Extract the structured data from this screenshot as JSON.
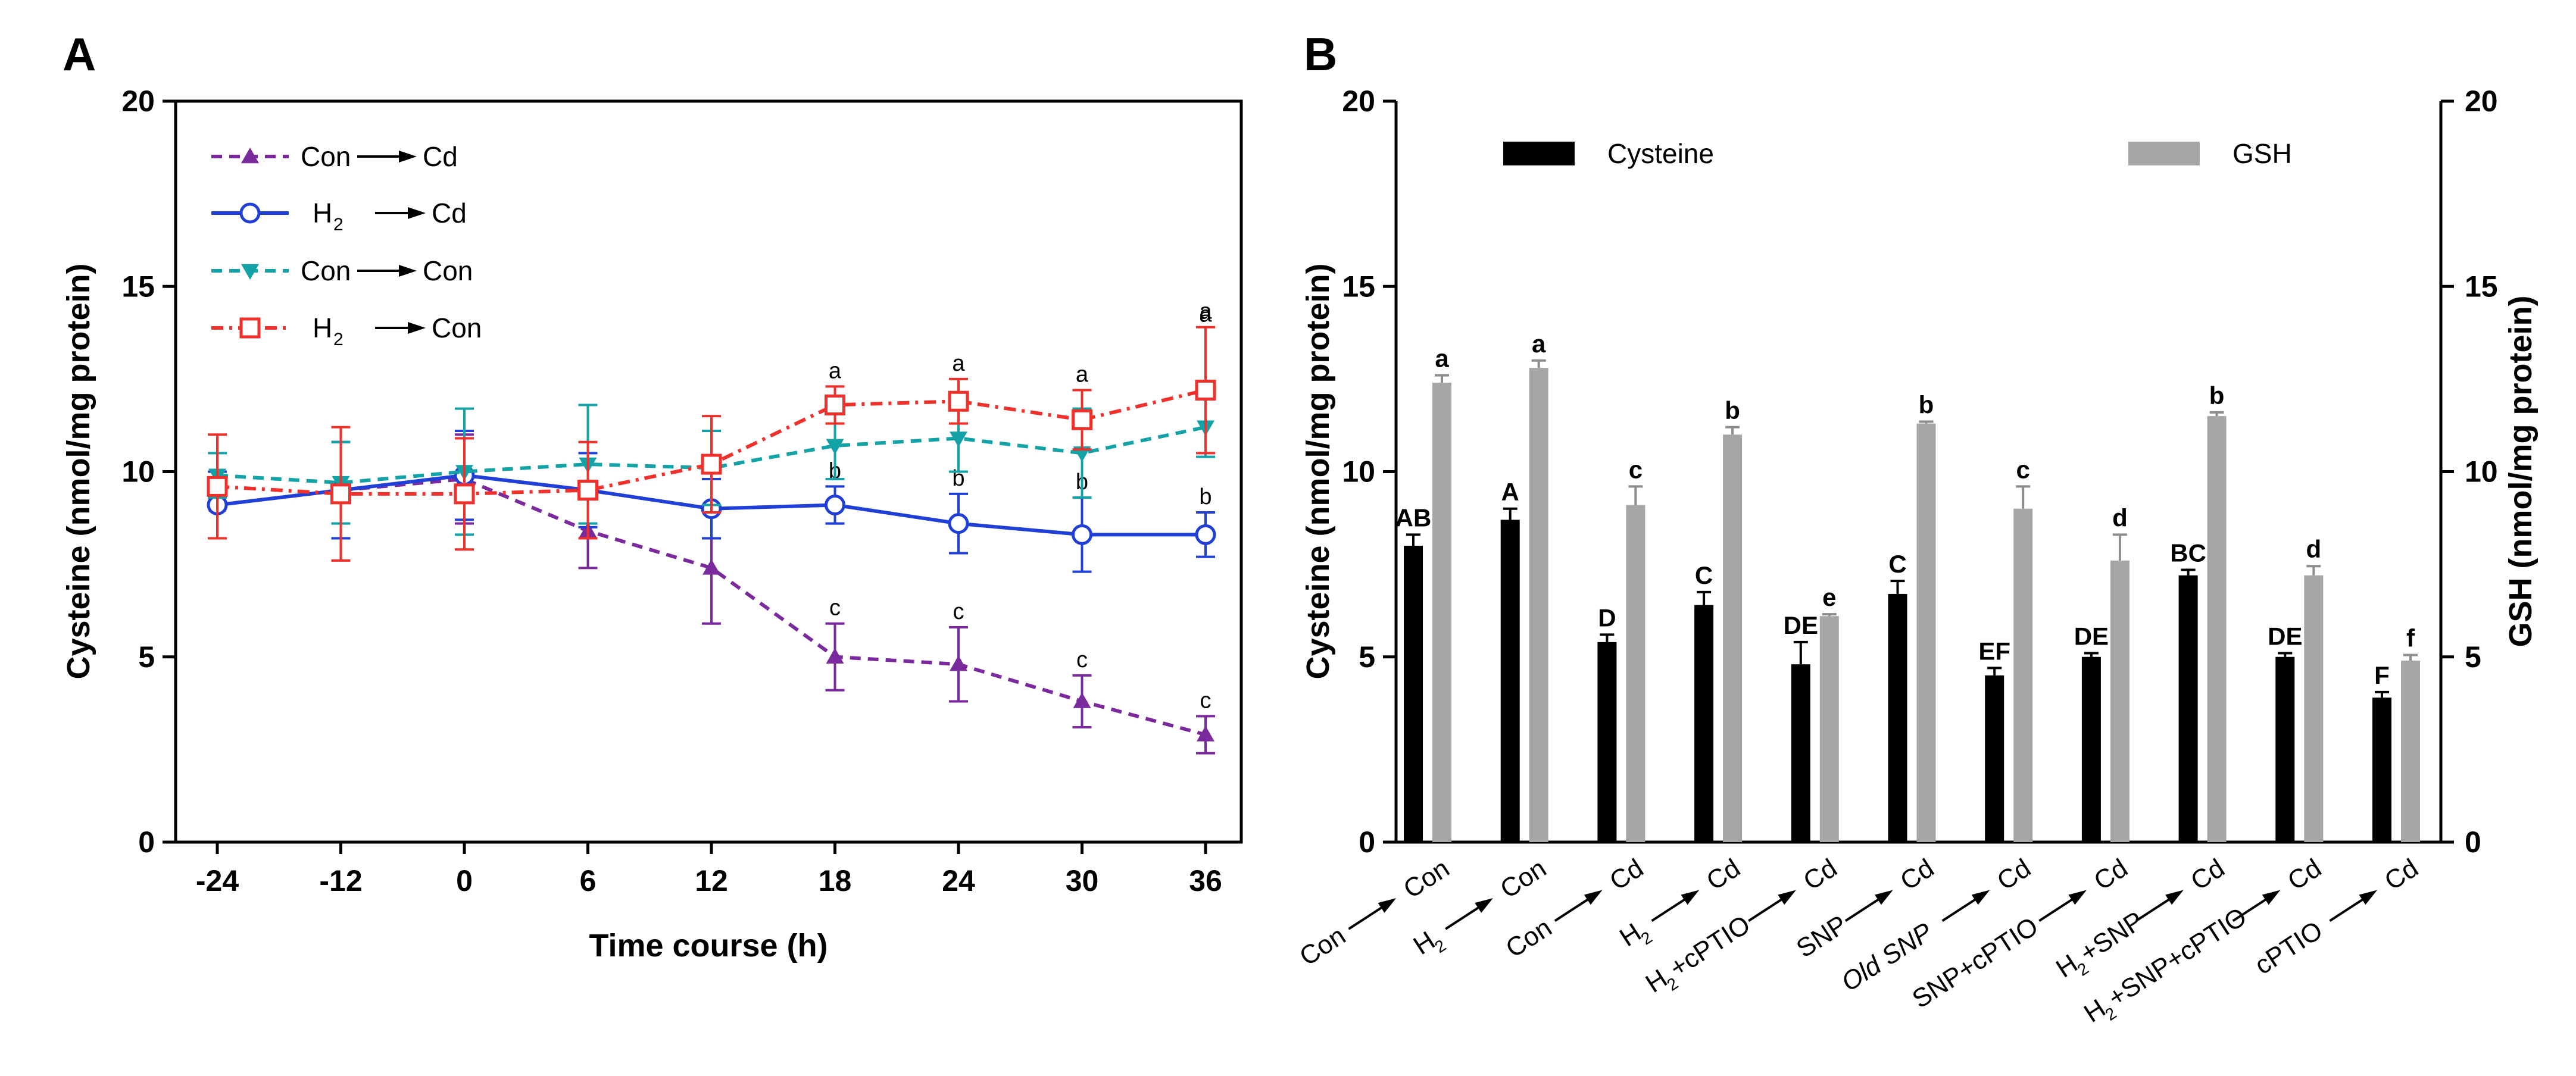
{
  "chart_data": [
    {
      "panel": "A",
      "type": "line",
      "xlabel": "Time course (h)",
      "ylabel": "Cysteine (nmol/mg protein)",
      "x": [
        -24,
        -12,
        0,
        6,
        12,
        18,
        24,
        30,
        36
      ],
      "x_ticks": [
        "-24",
        "-12",
        "0",
        "6",
        "12",
        "18",
        "24",
        "30",
        "36"
      ],
      "ylim": [
        0,
        20
      ],
      "y_ticks": [
        "0",
        "5",
        "10",
        "15",
        "20"
      ],
      "legend_position": "top-left",
      "series": [
        {
          "name": "Con→Cd",
          "legend_left": "Con",
          "legend_right": "Cd",
          "color": "#7b2a9e",
          "dash": "dashed",
          "marker": "triangle-up",
          "values": [
            9.1,
            9.5,
            9.8,
            8.4,
            7.4,
            5.0,
            4.8,
            3.8,
            2.9
          ],
          "errors": [
            0.9,
            1.3,
            1.2,
            1.0,
            1.5,
            0.9,
            1.0,
            0.7,
            0.5
          ],
          "sig": [
            "",
            "",
            "",
            "",
            "",
            "c",
            "c",
            "c",
            "c"
          ]
        },
        {
          "name": "H2→Cd",
          "legend_left": "H",
          "legend_sub": "2",
          "legend_right": "Cd",
          "color": "#1f3fd6",
          "dash": "solid",
          "marker": "circle-open",
          "values": [
            9.1,
            9.5,
            9.9,
            9.5,
            9.0,
            9.1,
            8.6,
            8.3,
            8.3
          ],
          "errors": [
            0.9,
            1.3,
            1.2,
            1.0,
            0.8,
            0.5,
            0.8,
            1.0,
            0.6
          ],
          "sig": [
            "",
            "",
            "",
            "",
            "",
            "b",
            "b",
            "b",
            "b"
          ]
        },
        {
          "name": "Con→Con",
          "legend_left": "Con",
          "legend_right": "Con",
          "color": "#13a3a7",
          "dash": "dashed",
          "marker": "triangle-down",
          "values": [
            9.9,
            9.7,
            10.0,
            10.2,
            10.1,
            10.7,
            10.9,
            10.5,
            11.2
          ],
          "errors": [
            0.6,
            1.1,
            1.7,
            1.6,
            1.0,
            0.9,
            0.9,
            1.2,
            0.8
          ],
          "sig": [
            "",
            "",
            "",
            "",
            "",
            "",
            "",
            "",
            ""
          ]
        },
        {
          "name": "H2→Con",
          "legend_left": "H",
          "legend_sub": "2",
          "legend_right": "Con",
          "color": "#f0302a",
          "dash": "dashdot",
          "marker": "square-open",
          "values": [
            9.6,
            9.4,
            9.4,
            9.5,
            10.2,
            11.8,
            11.9,
            11.4,
            12.2
          ],
          "errors": [
            1.4,
            1.8,
            1.5,
            1.3,
            1.3,
            0.5,
            0.6,
            0.8,
            1.7
          ],
          "sig": [
            "",
            "",
            "",
            "",
            "",
            "a",
            "a",
            "a",
            "a"
          ]
        }
      ],
      "top_sig_36": "a"
    },
    {
      "panel": "B",
      "type": "bar",
      "ylabel": "Cysteine (nmol/mg protein)",
      "ylabel_right": "GSH (nmol/mg protein)",
      "ylim": [
        0,
        20
      ],
      "ylim_right": [
        0,
        20
      ],
      "y_ticks": [
        "0",
        "5",
        "10",
        "15",
        "20"
      ],
      "legend_position": "top",
      "categories": [
        {
          "left": "Con",
          "right": "Con"
        },
        {
          "left": "H",
          "sub": "2",
          "right": "Con"
        },
        {
          "left": "Con",
          "right": "Cd"
        },
        {
          "left": "H",
          "sub": "2",
          "right": "Cd"
        },
        {
          "left": "H",
          "sub": "2",
          "left2": "+cPTIO",
          "right": "Cd"
        },
        {
          "left": "SNP",
          "right": "Cd"
        },
        {
          "left": "Old SNP",
          "right": "Cd"
        },
        {
          "left": "SNP+cPTIO",
          "right": "Cd"
        },
        {
          "left": "H",
          "sub": "2",
          "left2": "+SNP",
          "right": "Cd"
        },
        {
          "left": "H",
          "sub": "2",
          "left2": "+SNP+cPTIO",
          "right": "Cd"
        },
        {
          "left": "cPTIO",
          "right": "Cd"
        }
      ],
      "series": [
        {
          "name": "Cysteine",
          "color": "#000000",
          "values": [
            8.0,
            8.7,
            5.4,
            6.4,
            4.8,
            6.7,
            4.5,
            5.0,
            7.2,
            5.0,
            3.9
          ],
          "errors": [
            0.3,
            0.3,
            0.2,
            0.35,
            0.6,
            0.35,
            0.2,
            0.1,
            0.15,
            0.1,
            0.15
          ],
          "sig": [
            "AB",
            "A",
            "D",
            "C",
            "DE",
            "C",
            "EF",
            "DE",
            "BC",
            "DE",
            "F"
          ]
        },
        {
          "name": "GSH",
          "color": "#a6a6a8",
          "values": [
            12.4,
            12.8,
            9.1,
            11.0,
            6.1,
            11.3,
            9.0,
            7.6,
            11.5,
            7.2,
            4.9
          ],
          "errors": [
            0.2,
            0.2,
            0.5,
            0.2,
            0.05,
            0.05,
            0.6,
            0.7,
            0.1,
            0.25,
            0.15
          ],
          "sig": [
            "a",
            "a",
            "c",
            "b",
            "e",
            "b",
            "c",
            "d",
            "b",
            "d",
            "f"
          ]
        }
      ]
    }
  ]
}
